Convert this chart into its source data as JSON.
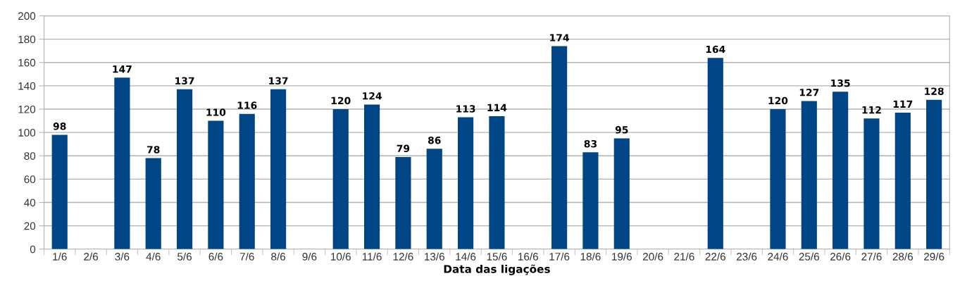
{
  "chart_data": {
    "type": "bar",
    "xlabel": "Data das ligações",
    "categories": [
      "1/6",
      "2/6",
      "3/6",
      "4/6",
      "5/6",
      "6/6",
      "7/6",
      "8/6",
      "9/6",
      "10/6",
      "11/6",
      "12/6",
      "13/6",
      "14/6",
      "15/6",
      "16/6",
      "17/6",
      "18/6",
      "19/6",
      "20/6",
      "21/6",
      "22/6",
      "23/6",
      "24/6",
      "25/6",
      "26/6",
      "27/6",
      "28/6",
      "29/6"
    ],
    "values": [
      98,
      null,
      147,
      78,
      137,
      110,
      116,
      137,
      null,
      120,
      124,
      79,
      86,
      113,
      114,
      null,
      174,
      83,
      95,
      null,
      null,
      164,
      null,
      120,
      127,
      135,
      112,
      117,
      128
    ],
    "color": "#004586",
    "ylim": [
      0,
      200
    ],
    "yticks": [
      0,
      20,
      40,
      60,
      80,
      100,
      120,
      140,
      160,
      180,
      200
    ],
    "grid": "y",
    "data_labels": true
  }
}
